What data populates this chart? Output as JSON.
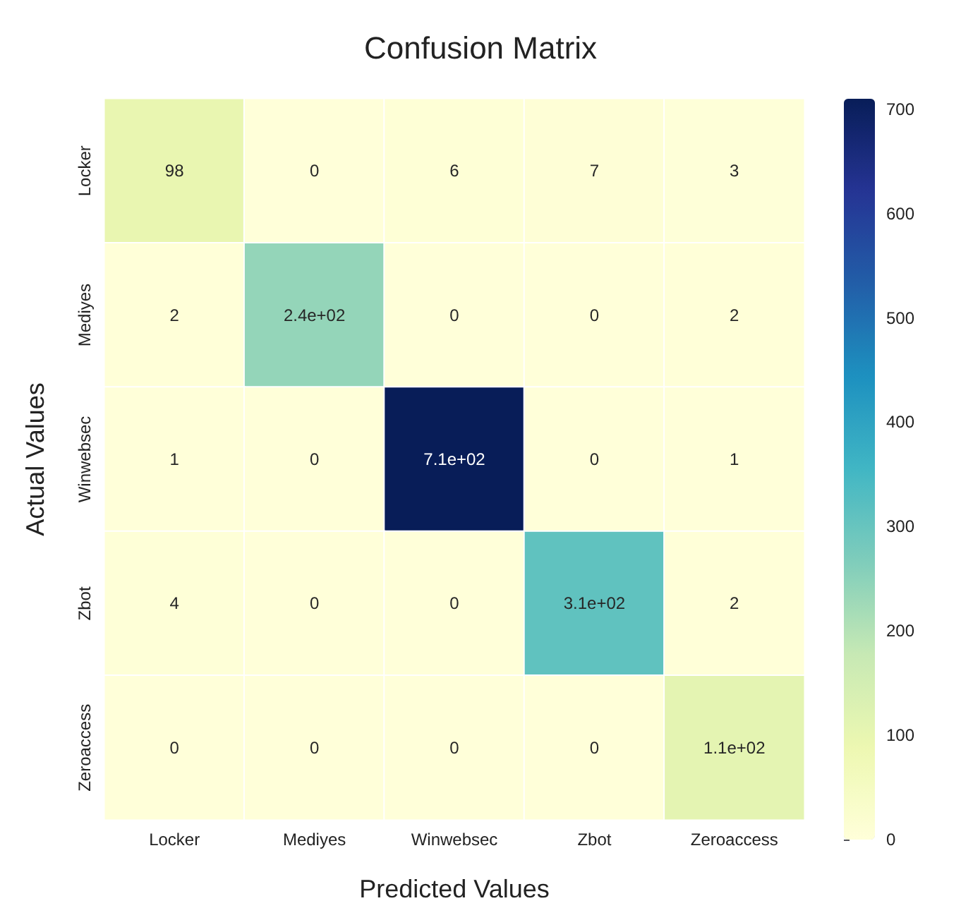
{
  "chart_data": {
    "type": "heatmap",
    "title": "Confusion Matrix",
    "xlabel": "Predicted Values",
    "ylabel": "Actual Values",
    "categories": [
      "Locker",
      "Mediyes",
      "Winwebsec",
      "Zbot",
      "Zeroaccess"
    ],
    "y_categories": [
      "Locker",
      "Mediyes",
      "Winwebsec",
      "Zbot",
      "Zeroaccess"
    ],
    "cells": [
      [
        98,
        0,
        6,
        7,
        3
      ],
      [
        2,
        240,
        0,
        0,
        2
      ],
      [
        1,
        0,
        710,
        0,
        1
      ],
      [
        4,
        0,
        0,
        310,
        2
      ],
      [
        0,
        0,
        0,
        0,
        110
      ]
    ],
    "cell_labels": [
      [
        "98",
        "0",
        "6",
        "7",
        "3"
      ],
      [
        "2",
        "2.4e+02",
        "0",
        "0",
        "2"
      ],
      [
        "1",
        "0",
        "7.1e+02",
        "0",
        "1"
      ],
      [
        "4",
        "0",
        "0",
        "3.1e+02",
        "2"
      ],
      [
        "0",
        "0",
        "0",
        "0",
        "1.1e+02"
      ]
    ],
    "clim": [
      0,
      710
    ],
    "cticks": [
      0,
      100,
      200,
      300,
      400,
      500,
      600,
      700
    ]
  }
}
